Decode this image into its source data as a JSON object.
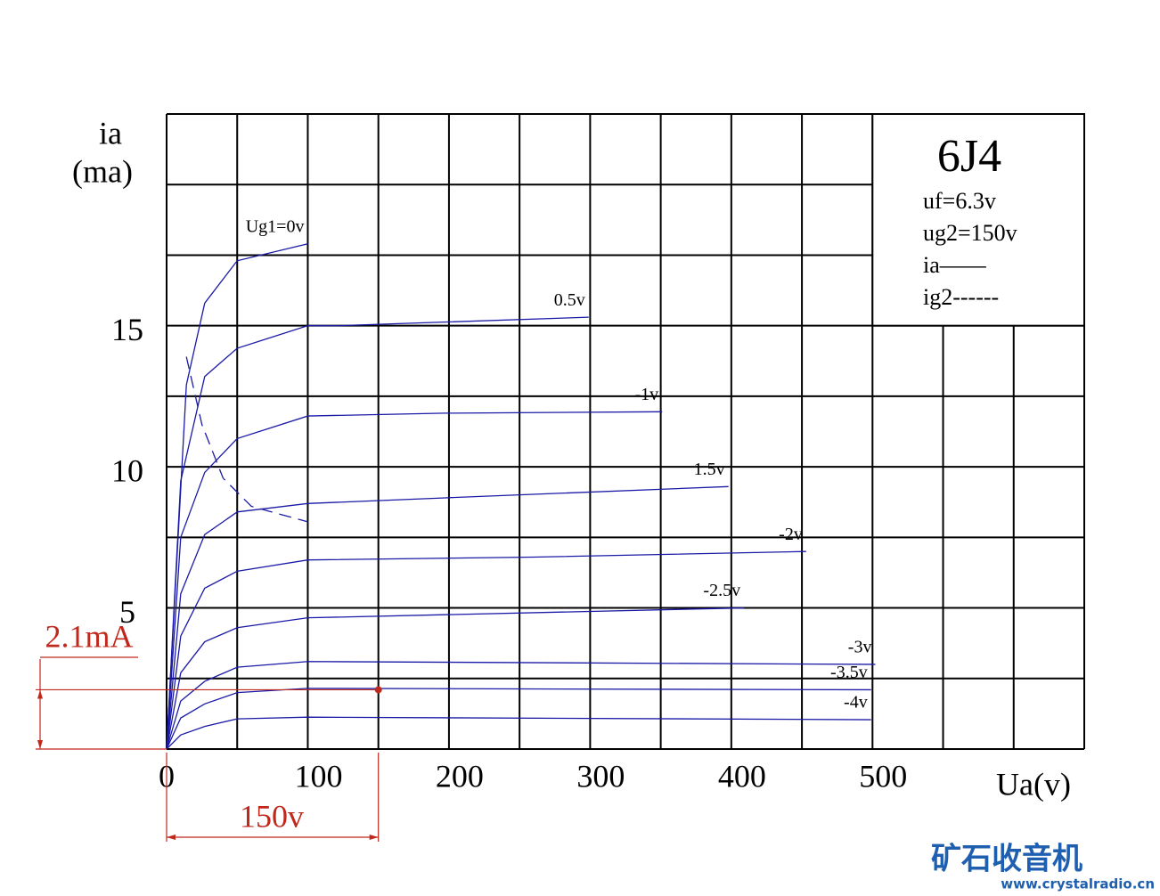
{
  "chart_data": {
    "type": "line",
    "title": "6J4",
    "info": [
      "uf=6.3v",
      "ug2=150v",
      "ia——",
      "ig2------"
    ],
    "y_label": [
      "ia",
      "(ma)"
    ],
    "x_label": "Ua(v)",
    "xlim": [
      0,
      650
    ],
    "ylim": [
      0,
      22.5
    ],
    "xticks": [
      0,
      100,
      200,
      300,
      400,
      500
    ],
    "yticks": [
      5,
      10,
      15
    ],
    "x_grid": [
      0,
      50,
      100,
      150,
      200,
      250,
      300,
      350,
      400,
      450,
      500,
      550,
      600,
      650
    ],
    "y_grid": [
      0,
      2.5,
      5,
      7.5,
      10,
      12.5,
      15,
      17.5,
      20,
      22.5
    ],
    "color": "#1a1aa6",
    "series": [
      {
        "name": "Ug1=0v",
        "x": [
          0,
          14,
          27,
          50,
          100
        ],
        "values": [
          0,
          12.9,
          15.8,
          17.3,
          17.9
        ]
      },
      {
        "name": "0.5v",
        "x": [
          0,
          10,
          27,
          50,
          100,
          121,
          299
        ],
        "values": [
          0,
          9.5,
          13.2,
          14.2,
          15.0,
          15.0,
          15.3
        ]
      },
      {
        "name": "-1v",
        "x": [
          0,
          10,
          27,
          50,
          100,
          197,
          351
        ],
        "values": [
          0,
          7.5,
          9.8,
          11.0,
          11.8,
          11.9,
          11.95
        ]
      },
      {
        "name": "1.5v",
        "x": [
          0,
          10,
          27,
          50,
          100,
          197,
          398
        ],
        "values": [
          0,
          5.5,
          7.6,
          8.4,
          8.7,
          8.9,
          9.3
        ]
      },
      {
        "name": "-2v",
        "x": [
          0,
          10,
          27,
          50,
          100,
          260,
          453
        ],
        "values": [
          0,
          4.0,
          5.7,
          6.3,
          6.7,
          6.8,
          7.0
        ]
      },
      {
        "name": "-2.5v",
        "x": [
          0,
          10,
          27,
          50,
          100,
          409
        ],
        "values": [
          0,
          2.7,
          3.8,
          4.3,
          4.65,
          5.0
        ]
      },
      {
        "name": "-3v",
        "x": [
          0,
          10,
          27,
          50,
          100,
          502
        ],
        "values": [
          0,
          1.7,
          2.4,
          2.9,
          3.1,
          3.0
        ]
      },
      {
        "name": "-3.5v",
        "x": [
          0,
          10,
          27,
          50,
          100,
          499
        ],
        "values": [
          0,
          1.1,
          1.6,
          2.0,
          2.15,
          2.1
        ]
      },
      {
        "name": "-4v",
        "x": [
          0,
          10,
          27,
          50,
          100,
          499
        ],
        "values": [
          0,
          0.5,
          0.8,
          1.07,
          1.13,
          1.04
        ]
      },
      {
        "x": [
          14,
          25,
          40,
          60,
          100
        ],
        "values": [
          13.9,
          11.5,
          9.6,
          8.6,
          8.05
        ],
        "dashed": true
      }
    ],
    "annotations": [
      {
        "label": "2.1mA",
        "value": 2.1
      },
      {
        "label": "150v",
        "value": 150
      }
    ],
    "annotation_color": "#c0281c"
  },
  "watermark": {
    "title": "矿石收音机",
    "url": "www.crystalradio.cn"
  }
}
